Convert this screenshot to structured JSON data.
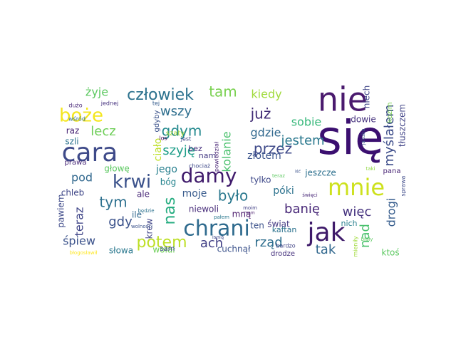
{
  "word_cloud": {
    "words": [
      {
        "text": "się",
        "color": "#3b0f70"
      },
      {
        "text": "nie",
        "color": "#4a1a6e"
      },
      {
        "text": "cara",
        "color": "#3e4a89"
      },
      {
        "text": "mnie",
        "color": "#cde11d"
      },
      {
        "text": "jak",
        "color": "#3f1b6a"
      },
      {
        "text": "chrani",
        "color": "#2f6b8e"
      },
      {
        "text": "damy",
        "color": "#3f1a6b"
      },
      {
        "text": "krwi",
        "color": "#3b528b"
      },
      {
        "text": "boże",
        "color": "#f4e61e"
      },
      {
        "text": "człowiek",
        "color": "#2c728e"
      },
      {
        "text": "tam",
        "color": "#7ad151"
      },
      {
        "text": "już",
        "color": "#3f2a74"
      },
      {
        "text": "przez",
        "color": "#3e4989"
      },
      {
        "text": "myślałem",
        "color": "#3d4d8a"
      },
      {
        "text": "kolanie",
        "color": "#4ac16d"
      },
      {
        "text": "nas",
        "color": "#27ad81"
      },
      {
        "text": "potem",
        "color": "#bddf26"
      },
      {
        "text": "było",
        "color": "#2a788e"
      },
      {
        "text": "tym",
        "color": "#2d708e"
      },
      {
        "text": "gdy",
        "color": "#3b528b"
      },
      {
        "text": "gdym",
        "color": "#23898e"
      },
      {
        "text": "szyję",
        "color": "#1f9e89"
      },
      {
        "text": "lecz",
        "color": "#6ece58"
      },
      {
        "text": "wszy",
        "color": "#2e6f8e"
      },
      {
        "text": "żyje",
        "color": "#5ec962"
      },
      {
        "text": "sobie",
        "color": "#35b779"
      },
      {
        "text": "jestem",
        "color": "#2a788e"
      },
      {
        "text": "gdzie",
        "color": "#31688e"
      },
      {
        "text": "złotem",
        "color": "#3a548c"
      },
      {
        "text": "kiedy",
        "color": "#9fda3a"
      },
      {
        "text": "ach",
        "color": "#424086"
      },
      {
        "text": "banię",
        "color": "#482878"
      },
      {
        "text": "więc",
        "color": "#46337f"
      },
      {
        "text": "rząd",
        "color": "#2e6e8e"
      },
      {
        "text": "tak",
        "color": "#31688e"
      },
      {
        "text": "nad",
        "color": "#4ac16d"
      },
      {
        "text": "drogi",
        "color": "#365d8d"
      },
      {
        "text": "teraz",
        "color": "#404688"
      },
      {
        "text": "śpiew",
        "color": "#3b528b"
      },
      {
        "text": "pod",
        "color": "#31688e"
      },
      {
        "text": "jego",
        "color": "#277f8e"
      },
      {
        "text": "moje",
        "color": "#375a8c"
      },
      {
        "text": "póki",
        "color": "#2c728e"
      },
      {
        "text": "ciało",
        "color": "#bddf26"
      },
      {
        "text": "niech",
        "color": "#404688"
      },
      {
        "text": "kozim",
        "color": "#7ad151"
      },
      {
        "text": "tłuszczem",
        "color": "#414487"
      },
      {
        "text": "dowie",
        "color": "#46327e"
      },
      {
        "text": "pana",
        "color": "#482475"
      },
      {
        "text": "jeszcze",
        "color": "#2d708e"
      },
      {
        "text": "tylko",
        "color": "#3e4989"
      },
      {
        "text": "niewoli",
        "color": "#472c7a"
      },
      {
        "text": "mną",
        "color": "#481769"
      },
      {
        "text": "ten",
        "color": "#3b528b"
      },
      {
        "text": "świat",
        "color": "#443983"
      },
      {
        "text": "kaftan",
        "color": "#2c728e"
      },
      {
        "text": "nich",
        "color": "#277f8e"
      },
      {
        "text": "ktoś",
        "color": "#5ec962"
      },
      {
        "text": "krew",
        "color": "#414487"
      },
      {
        "text": "słowa",
        "color": "#2a788e"
      },
      {
        "text": "wołał",
        "color": "#6ece58"
      },
      {
        "text": "cuchnął",
        "color": "#3b528b"
      },
      {
        "text": "drodze",
        "color": "#46327e"
      },
      {
        "text": "sam",
        "color": "#404688"
      },
      {
        "text": "ale",
        "color": "#482878"
      },
      {
        "text": "bóg",
        "color": "#25848e"
      },
      {
        "text": "ile",
        "color": "#31688e"
      },
      {
        "text": "pawiem",
        "color": "#3e4a89"
      },
      {
        "text": "chleb",
        "color": "#3f4788"
      },
      {
        "text": "głowę",
        "color": "#5ec962"
      },
      {
        "text": "prawa",
        "color": "#482878"
      },
      {
        "text": "raz",
        "color": "#482475"
      },
      {
        "text": "szli",
        "color": "#2c728e"
      },
      {
        "text": "bez",
        "color": "#46307e"
      },
      {
        "text": "nam",
        "color": "#443a83"
      },
      {
        "text": "szaty",
        "color": "#a2da37"
      },
      {
        "text": "gdyby",
        "color": "#3b528b"
      },
      {
        "text": "los",
        "color": "#440154"
      },
      {
        "text": "jest",
        "color": "#3e4989"
      },
      {
        "text": "dużo",
        "color": "#482878"
      },
      {
        "text": "jednej",
        "color": "#46337f"
      },
      {
        "text": "wśród",
        "color": "#2e6e8e"
      },
      {
        "text": "tej",
        "color": "#365c8d"
      },
      {
        "text": "chociaż",
        "color": "#3e4a89"
      },
      {
        "text": "powiedział",
        "color": "#482475"
      },
      {
        "text": "bardzo",
        "color": "#414487"
      },
      {
        "text": "jakuba",
        "color": "#3b528b"
      },
      {
        "text": "pałem",
        "color": "#2a788e"
      },
      {
        "text": "taki",
        "color": "#90d743"
      },
      {
        "text": "teraz",
        "color": "#5ec962"
      },
      {
        "text": "święci",
        "color": "#482878"
      },
      {
        "text": "mam",
        "color": "#481a6c"
      },
      {
        "text": "wolności",
        "color": "#3b528b"
      },
      {
        "text": "będzie",
        "color": "#2c728e"
      },
      {
        "text": "isnią",
        "color": "#3e4a89"
      },
      {
        "text": "moim",
        "color": "#424186"
      },
      {
        "text": "mieniły",
        "color": "#9fda3a"
      },
      {
        "text": "sprawa",
        "color": "#3e4a89"
      },
      {
        "text": "biały",
        "color": "#5ec962"
      },
      {
        "text": "błogosławił",
        "color": "#fde725"
      },
      {
        "text": "iść",
        "color": "#3b528b"
      }
    ]
  }
}
